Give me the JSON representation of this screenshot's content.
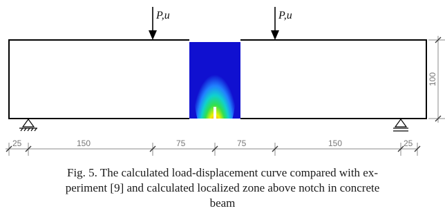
{
  "loads": [
    {
      "label": "P,u"
    },
    {
      "label": "P,u"
    }
  ],
  "dimensions": {
    "bottom": [
      "25",
      "150",
      "75",
      "75",
      "150",
      "25"
    ],
    "height": "100"
  },
  "caption": {
    "line1": "Fig. 5. The calculated load-displacement curve compared with ex-",
    "line2": "periment [9] and calculated localized zone above notch in concrete",
    "line3": "beam"
  },
  "colors": {
    "damage_background": "#1010d0",
    "damage_peak": "#e01010"
  }
}
